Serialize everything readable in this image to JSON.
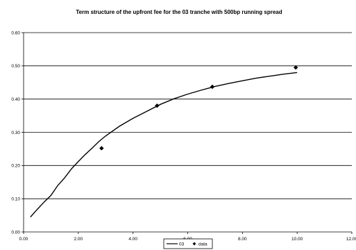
{
  "chart_data": {
    "type": "line",
    "title": "Term structure of the upfront fee for the 03 tranche with 500bp running spread",
    "xlabel": "",
    "ylabel": "",
    "xlim": [
      0,
      12
    ],
    "ylim": [
      0,
      0.6
    ],
    "x_ticks": [
      "0.00",
      "2.00",
      "4.00",
      "6.00",
      "8.00",
      "10.00",
      "12.00"
    ],
    "y_ticks": [
      "0.00",
      "0.10",
      "0.20",
      "0.30",
      "0.40",
      "0.50",
      "0.60"
    ],
    "grid": "horizontal",
    "legend_position": "bottom",
    "series": [
      {
        "name": "03",
        "kind": "line",
        "color": "#000000",
        "points": [
          [
            0.25,
            0.045
          ],
          [
            0.5,
            0.068
          ],
          [
            0.75,
            0.09
          ],
          [
            1.0,
            0.11
          ],
          [
            1.25,
            0.14
          ],
          [
            1.5,
            0.163
          ],
          [
            1.75,
            0.19
          ],
          [
            2.0,
            0.212
          ],
          [
            2.25,
            0.233
          ],
          [
            2.5,
            0.252
          ],
          [
            2.75,
            0.272
          ],
          [
            3.0,
            0.289
          ],
          [
            3.5,
            0.318
          ],
          [
            4.0,
            0.342
          ],
          [
            4.5,
            0.363
          ],
          [
            5.0,
            0.384
          ],
          [
            5.5,
            0.401
          ],
          [
            6.0,
            0.415
          ],
          [
            6.5,
            0.427
          ],
          [
            7.0,
            0.438
          ],
          [
            7.5,
            0.447
          ],
          [
            8.0,
            0.455
          ],
          [
            8.5,
            0.463
          ],
          [
            9.0,
            0.469
          ],
          [
            9.5,
            0.475
          ],
          [
            10.0,
            0.48
          ]
        ]
      },
      {
        "name": "data",
        "kind": "scatter",
        "marker": "diamond",
        "color": "#000000",
        "points": [
          [
            2.85,
            0.252
          ],
          [
            4.88,
            0.38
          ],
          [
            6.9,
            0.437
          ],
          [
            9.95,
            0.495
          ]
        ]
      }
    ]
  }
}
